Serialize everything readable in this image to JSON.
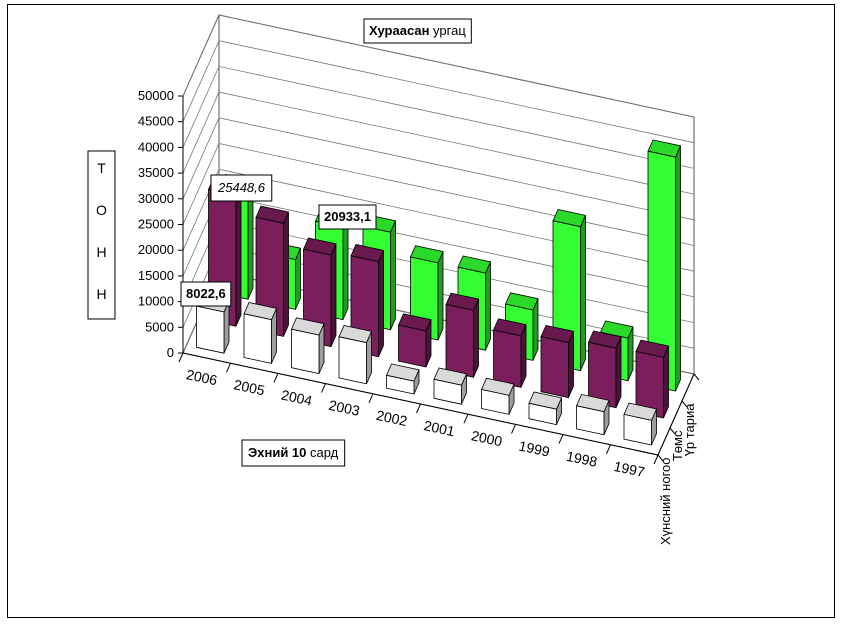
{
  "chart_data": {
    "type": "bar",
    "title_bold": "Хураасан",
    "title_rest": "ургац",
    "xlabel_bold": "Эхний 10",
    "xlabel_rest": "сард",
    "ylabel": [
      "Т",
      "О",
      "Н",
      "Н"
    ],
    "ylim": [
      0,
      50000
    ],
    "yticks": [
      0,
      5000,
      10000,
      15000,
      20000,
      25000,
      30000,
      35000,
      40000,
      45000,
      50000
    ],
    "categories": [
      "2006",
      "2005",
      "2004",
      "2003",
      "2002",
      "2001",
      "2000",
      "1999",
      "1998",
      "1997"
    ],
    "series": [
      {
        "name": "Хүнсний ногоо",
        "color": "#ffffff",
        "values": [
          8022.6,
          8500,
          7500,
          8000,
          2500,
          3700,
          3700,
          3000,
          4500,
          4800
        ]
      },
      {
        "name": "Төмс",
        "color": "#7a1f5c",
        "values": [
          25448.6,
          22000,
          17800,
          18500,
          7000,
          13000,
          10000,
          10700,
          11600,
          11800
        ]
      },
      {
        "name": "Үр тариа",
        "color": "#33ff33",
        "values": [
          20933.1,
          9700,
          18000,
          19000,
          15000,
          15000,
          9800,
          28000,
          8300,
          45500
        ]
      }
    ],
    "annotations": [
      {
        "text": "8022,6",
        "style": "bold"
      },
      {
        "text": "25448,6",
        "style": "italic"
      },
      {
        "text": "20933,1",
        "style": "bold"
      }
    ],
    "grid": true,
    "legend": "none"
  }
}
